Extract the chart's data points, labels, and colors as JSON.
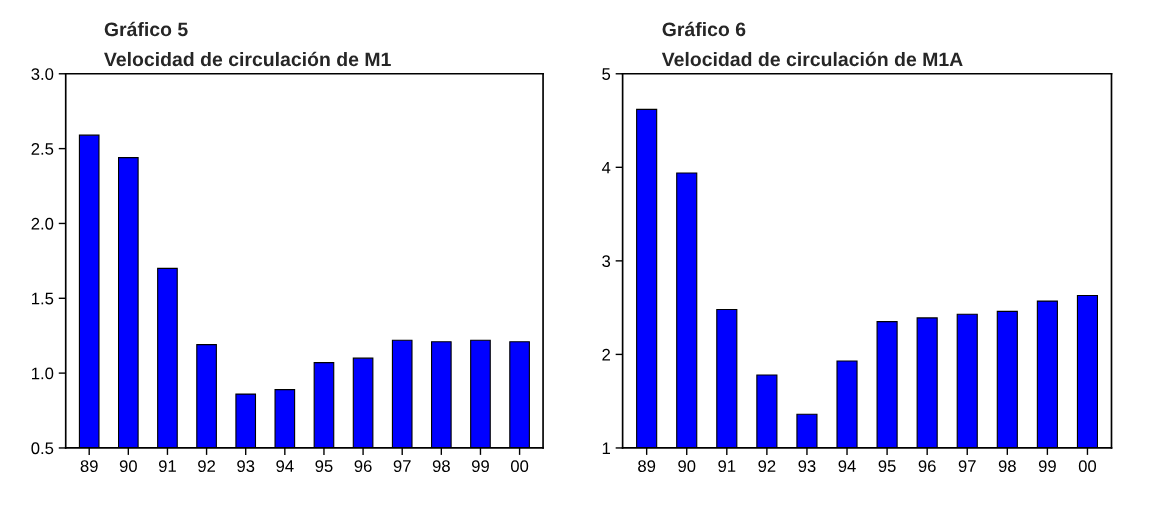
{
  "chart_data": [
    {
      "type": "bar",
      "title": "Gráfico 5",
      "subtitle": "Velocidad de circulación de M1",
      "categories": [
        "89",
        "90",
        "91",
        "92",
        "93",
        "94",
        "95",
        "96",
        "97",
        "98",
        "99",
        "00"
      ],
      "values": [
        2.59,
        2.44,
        1.7,
        1.19,
        0.86,
        0.89,
        1.07,
        1.1,
        1.22,
        1.21,
        1.22,
        1.21
      ],
      "color": "#0000ff",
      "ylim": [
        0.5,
        3.0
      ],
      "yticks": [
        {
          "value": 0.5,
          "label": "0.5"
        },
        {
          "value": 1.0,
          "label": "1.0"
        },
        {
          "value": 1.5,
          "label": "1.5"
        },
        {
          "value": 2.0,
          "label": "2.0"
        },
        {
          "value": 2.5,
          "label": "2.5"
        },
        {
          "value": 3.0,
          "label": "3.0"
        }
      ],
      "grid": false
    },
    {
      "type": "bar",
      "title": "Gráfico 6",
      "subtitle": "Velocidad de circulación de M1A",
      "categories": [
        "89",
        "90",
        "91",
        "92",
        "93",
        "94",
        "95",
        "96",
        "97",
        "98",
        "99",
        "00"
      ],
      "values": [
        4.62,
        3.94,
        2.48,
        1.78,
        1.36,
        1.93,
        2.35,
        2.39,
        2.43,
        2.46,
        2.57,
        2.63
      ],
      "color": "#0000ff",
      "ylim": [
        1,
        5
      ],
      "yticks": [
        1,
        2,
        3,
        4,
        5
      ],
      "grid": false
    }
  ]
}
